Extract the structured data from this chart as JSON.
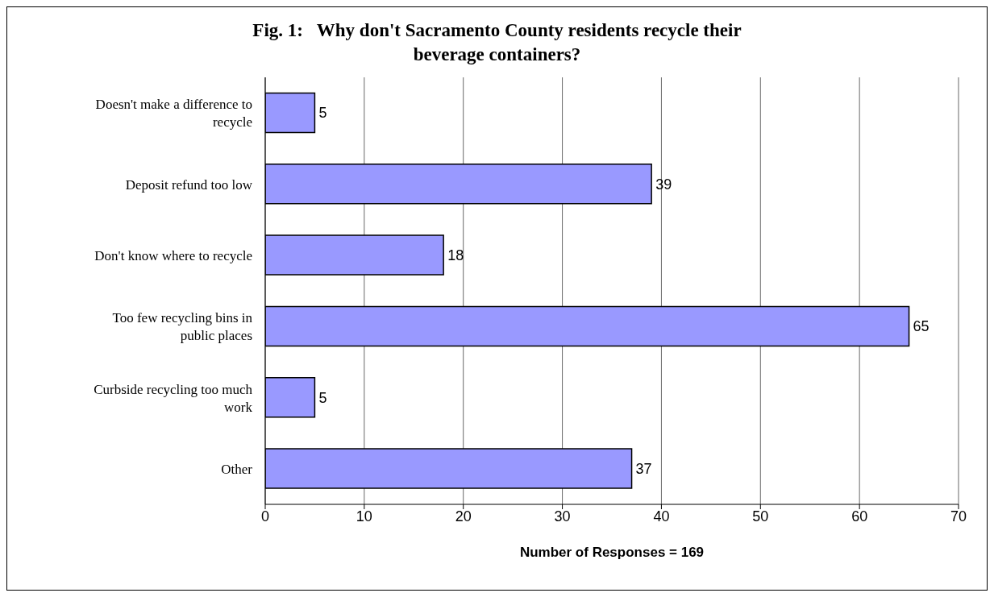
{
  "chart_data": {
    "type": "bar",
    "orientation": "horizontal",
    "title": "Fig. 1:   Why don't Sacramento County residents recycle their beverage containers?",
    "xlabel": "Number of Responses = 169",
    "categories": [
      "Doesn't make a difference to recycle",
      "Deposit refund too low",
      "Don't know where to recycle",
      "Too few recycling bins in public places",
      "Curbside recycling too much work",
      "Other"
    ],
    "values": [
      5,
      39,
      18,
      65,
      5,
      37
    ],
    "color": "#9999ff",
    "xlim": [
      0,
      70
    ],
    "xticks": [
      0,
      10,
      20,
      30,
      40,
      50,
      60,
      70
    ],
    "grid": "x",
    "data_labels": true,
    "legend": false
  }
}
